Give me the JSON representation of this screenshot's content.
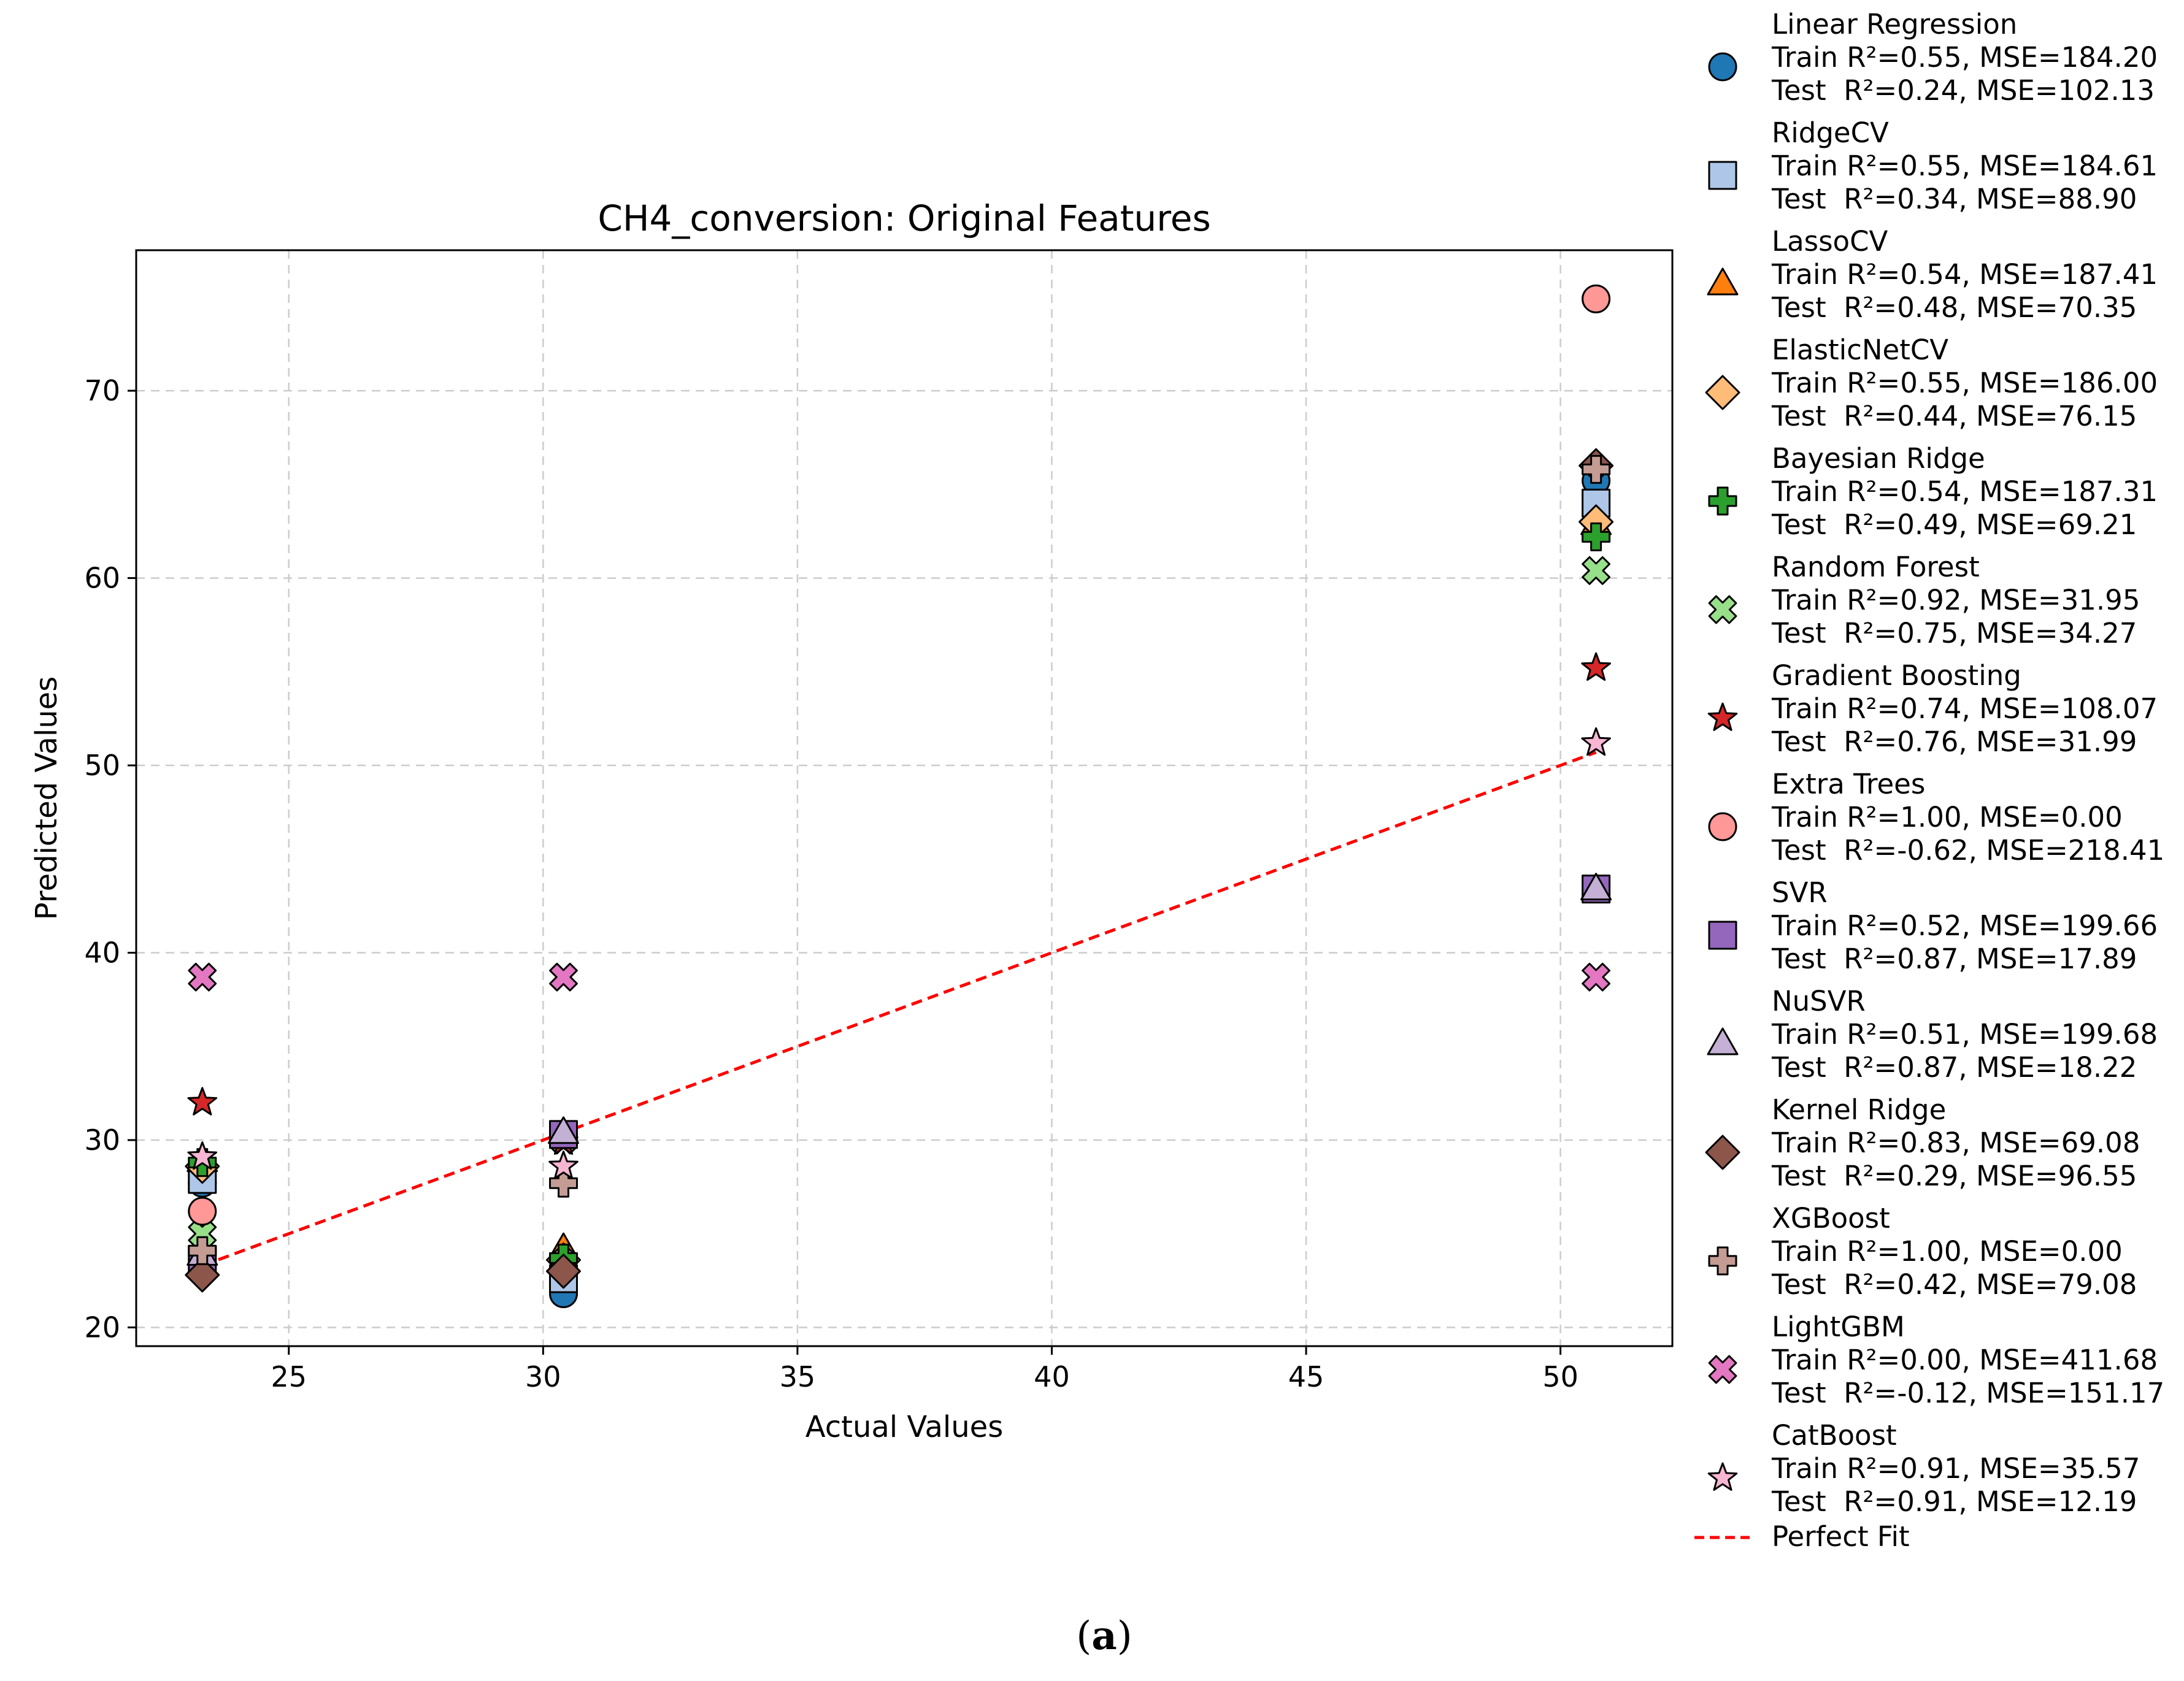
{
  "chart_data": {
    "type": "scatter",
    "title": "CH4_conversion: Original Features",
    "xlabel": "Actual Values",
    "ylabel": "Predicted Values",
    "xlim": [
      22.0,
      52.2
    ],
    "ylim": [
      19.0,
      77.5
    ],
    "xticks": [
      25,
      30,
      35,
      40,
      45,
      50
    ],
    "yticks": [
      20,
      30,
      40,
      50,
      60,
      70
    ],
    "grid": true,
    "legend_position": "outside-right",
    "x": [
      23.3,
      30.4,
      50.7
    ],
    "perfect_fit": {
      "label": "Perfect Fit",
      "from": [
        23.3,
        23.3
      ],
      "to": [
        50.7,
        50.7
      ],
      "color": "#ff0000",
      "style": "dashed"
    },
    "series": [
      {
        "name": "Linear Regression",
        "train": "Train R²=0.55, MSE=184.20",
        "test": "Test  R²=0.24, MSE=102.13",
        "marker": "circle",
        "color": "#1f77b4",
        "values": [
          27.7,
          21.8,
          65.2
        ]
      },
      {
        "name": "RidgeCV",
        "train": "Train R²=0.55, MSE=184.61",
        "test": "Test  R²=0.34, MSE=88.90",
        "marker": "square",
        "color": "#aec7e8",
        "values": [
          27.9,
          22.6,
          64.0
        ]
      },
      {
        "name": "LassoCV",
        "train": "Train R²=0.54, MSE=187.41",
        "test": "Test  R²=0.48, MSE=70.35",
        "marker": "triangle",
        "color": "#ff7f0e",
        "values": [
          28.9,
          24.2,
          62.9
        ]
      },
      {
        "name": "ElasticNetCV",
        "train": "Train R²=0.55, MSE=186.00",
        "test": "Test  R²=0.44, MSE=76.15",
        "marker": "diamond",
        "color": "#ffbb78",
        "values": [
          28.6,
          23.6,
          63.0
        ]
      },
      {
        "name": "Bayesian Ridge",
        "train": "Train R²=0.54, MSE=187.31",
        "test": "Test  R²=0.49, MSE=69.21",
        "marker": "plus",
        "color": "#2ca02c",
        "values": [
          28.8,
          23.7,
          62.2
        ]
      },
      {
        "name": "Random Forest",
        "train": "Train R²=0.92, MSE=31.95",
        "test": "Test  R²=0.75, MSE=34.27",
        "marker": "x",
        "color": "#98df8a",
        "values": [
          25.0,
          30.0,
          60.4
        ]
      },
      {
        "name": "Gradient Boosting",
        "train": "Train R²=0.74, MSE=108.07",
        "test": "Test  R²=0.76, MSE=31.99",
        "marker": "star",
        "color": "#d62728",
        "values": [
          32.0,
          29.9,
          55.2
        ]
      },
      {
        "name": "Extra Trees",
        "train": "Train R²=1.00, MSE=0.00",
        "test": "Test  R²=-0.62, MSE=218.41",
        "marker": "circle",
        "color": "#ff9896",
        "values": [
          26.2,
          30.3,
          74.9
        ]
      },
      {
        "name": "SVR",
        "train": "Train R²=0.52, MSE=199.66",
        "test": "Test  R²=0.87, MSE=17.89",
        "marker": "square",
        "color": "#9467bd",
        "values": [
          23.6,
          30.3,
          43.4
        ]
      },
      {
        "name": "NuSVR",
        "train": "Train R²=0.51, MSE=199.68",
        "test": "Test  R²=0.87, MSE=18.22",
        "marker": "triangle",
        "color": "#c5b0d5",
        "values": [
          23.9,
          30.4,
          43.4
        ]
      },
      {
        "name": "Kernel Ridge",
        "train": "Train R²=0.83, MSE=69.08",
        "test": "Test  R²=0.29, MSE=96.55",
        "marker": "diamond",
        "color": "#8c564b",
        "values": [
          22.8,
          23.0,
          66.0
        ]
      },
      {
        "name": "XGBoost",
        "train": "Train R²=1.00, MSE=0.00",
        "test": "Test  R²=0.42, MSE=79.08",
        "marker": "plus",
        "color": "#c49c94",
        "values": [
          24.1,
          27.7,
          65.8
        ]
      },
      {
        "name": "LightGBM",
        "train": "Train R²=0.00, MSE=411.68",
        "test": "Test  R²=-0.12, MSE=151.17",
        "marker": "x",
        "color": "#e377c2",
        "values": [
          38.7,
          38.7,
          38.7
        ]
      },
      {
        "name": "CatBoost",
        "train": "Train R²=0.91, MSE=35.57",
        "test": "Test  R²=0.91, MSE=12.19",
        "marker": "star",
        "color": "#f7b6d2",
        "values": [
          29.1,
          28.6,
          51.2
        ]
      }
    ]
  },
  "caption": {
    "open": "(",
    "label": "a",
    "close": ")"
  }
}
